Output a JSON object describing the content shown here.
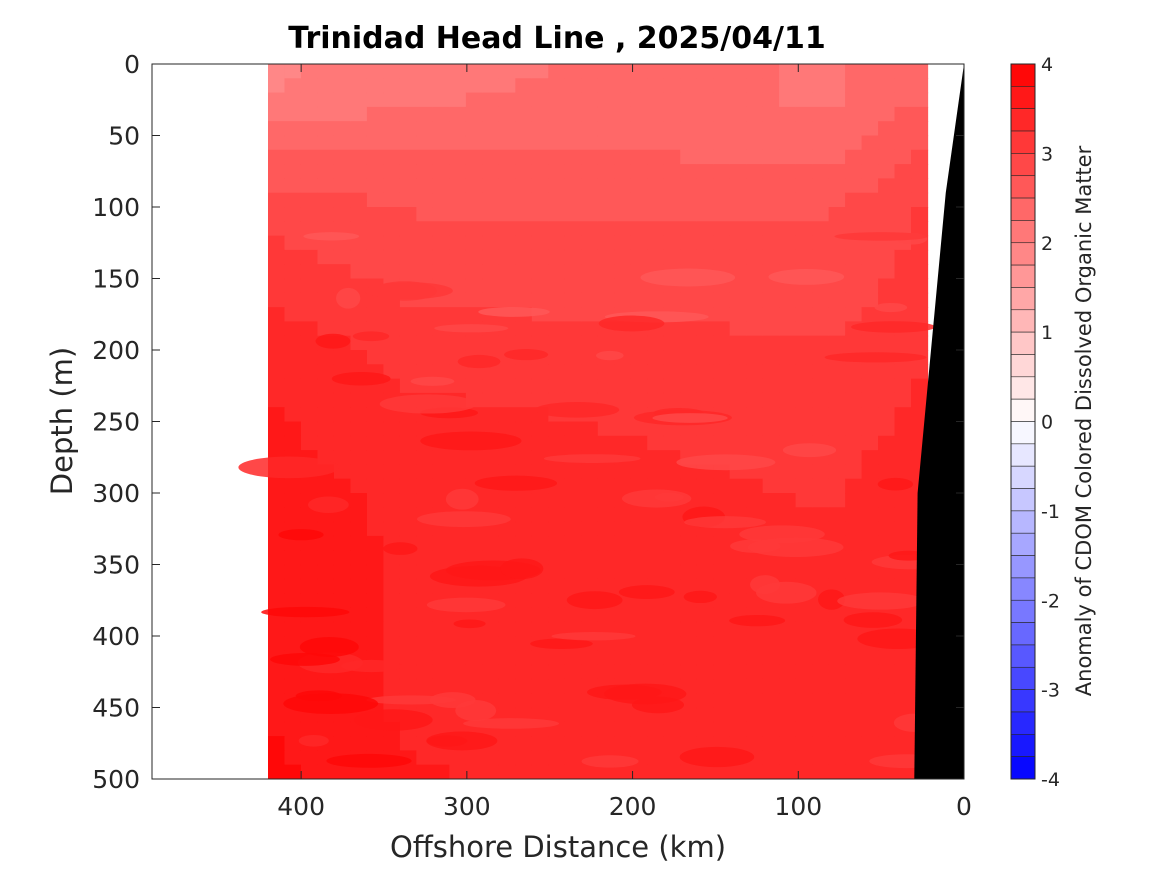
{
  "chart_data": {
    "type": "heatmap",
    "title": "Trinidad Head Line , 2025/04/11",
    "xlabel": "Offshore Distance (km)",
    "ylabel": "Depth (m)",
    "xlim": [
      490,
      0
    ],
    "ylim": [
      0,
      500
    ],
    "x_reversed": true,
    "y_reversed": true,
    "x_ticks": [
      "400",
      "300",
      "200",
      "100",
      "0"
    ],
    "x_tick_values": [
      400,
      300,
      200,
      100,
      0
    ],
    "y_ticks": [
      "0",
      "50",
      "100",
      "150",
      "200",
      "250",
      "300",
      "350",
      "400",
      "450",
      "500"
    ],
    "y_tick_values": [
      0,
      50,
      100,
      150,
      200,
      250,
      300,
      350,
      400,
      450,
      500
    ],
    "colorbar": {
      "label": "Anomaly of CDOM Colored Dissolved Organic Matter",
      "range": [
        -4,
        4
      ],
      "step": 0.25,
      "ticks": [
        "4",
        "3",
        "2",
        "1",
        "0",
        "-1",
        "-2",
        "-3",
        "-4"
      ],
      "tick_values": [
        4,
        3,
        2,
        1,
        0,
        -1,
        -2,
        -3,
        -4
      ],
      "low_color": "#0000ff",
      "mid_color": "#ffffff",
      "high_color": "#ff0000"
    },
    "data_extent_km": [
      420,
      22
    ],
    "field_depths_m": [
      0,
      25,
      50,
      100,
      150,
      200,
      250,
      300,
      350,
      400,
      450,
      500
    ],
    "field_anomaly_range_x": [
      420,
      330,
      200,
      80,
      22
    ],
    "field_anomaly_values": [
      [
        1.8,
        2.0,
        2.2,
        2.1,
        2.3
      ],
      [
        1.9,
        2.1,
        2.2,
        2.1,
        2.4
      ],
      [
        2.2,
        2.3,
        2.3,
        2.2,
        2.6
      ],
      [
        2.8,
        2.6,
        2.6,
        2.6,
        2.9
      ],
      [
        3.0,
        2.8,
        2.7,
        2.7,
        3.0
      ],
      [
        3.3,
        3.0,
        3.0,
        2.9,
        3.1
      ],
      [
        3.4,
        3.2,
        3.1,
        3.0,
        3.2
      ],
      [
        3.5,
        3.3,
        3.2,
        3.1,
        3.3
      ],
      [
        3.6,
        3.3,
        3.2,
        3.2,
        3.3
      ],
      [
        3.6,
        3.3,
        3.2,
        3.3,
        3.3
      ],
      [
        3.6,
        3.3,
        3.2,
        3.3,
        3.3
      ],
      [
        3.7,
        3.4,
        3.3,
        3.3,
        3.3
      ]
    ],
    "bathymetry_km_vs_depth_m": [
      [
        0,
        0
      ],
      [
        11,
        90
      ],
      [
        28,
        300
      ],
      [
        30,
        500
      ]
    ],
    "bathymetry_color": "#000000"
  }
}
